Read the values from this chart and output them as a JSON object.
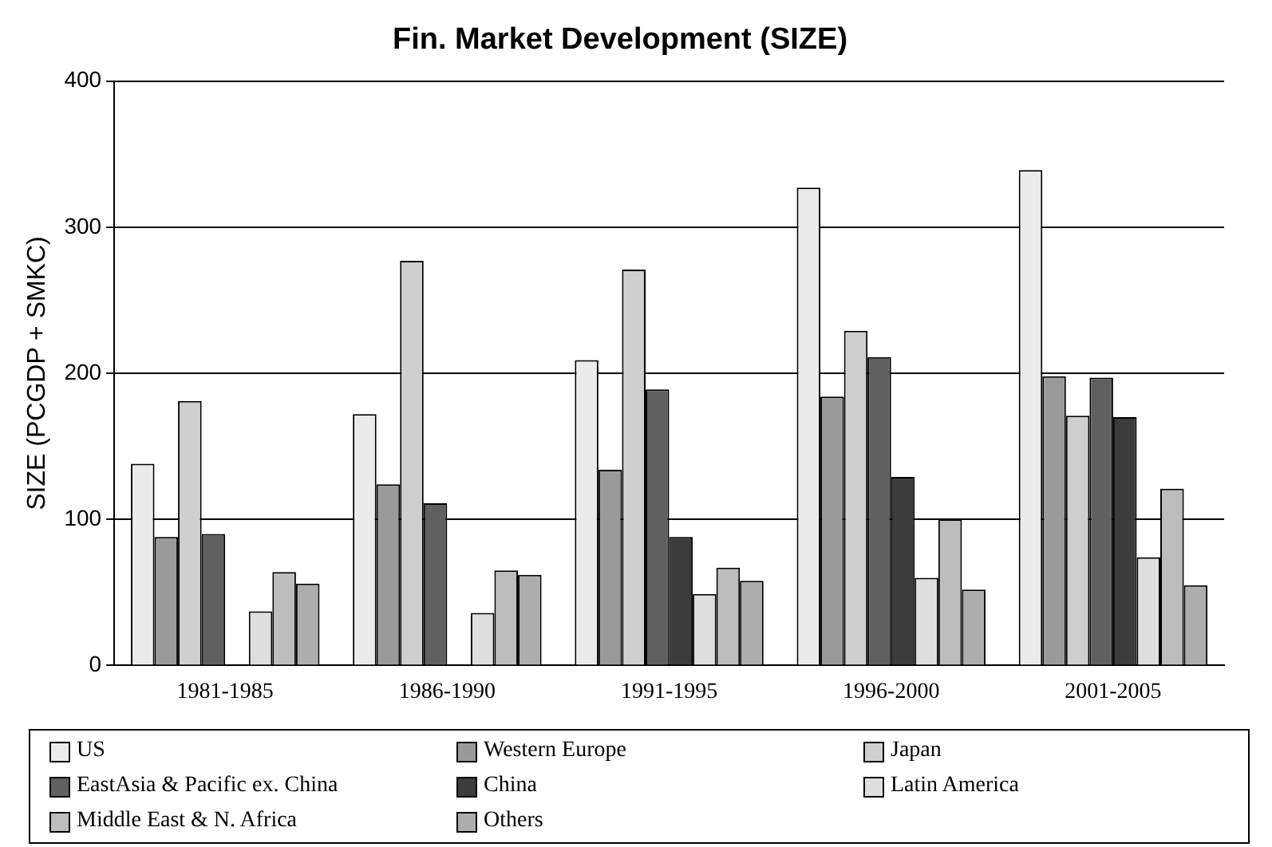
{
  "chart_data": {
    "type": "bar",
    "title": "Fin. Market Development (SIZE)",
    "ylabel": "SIZE (PCGDP + SMKC)",
    "categories": [
      "1981-1985",
      "1986-1990",
      "1991-1995",
      "1996-2000",
      "2001-2005"
    ],
    "series": [
      {
        "name": "US",
        "color": "#ebebeb",
        "values": [
          138,
          172,
          209,
          327,
          339
        ]
      },
      {
        "name": "Western Europe",
        "color": "#9a9a9a",
        "values": [
          88,
          124,
          134,
          184,
          198
        ]
      },
      {
        "name": "Japan",
        "color": "#cfcfcf",
        "values": [
          181,
          277,
          271,
          229,
          171
        ]
      },
      {
        "name": "EastAsia & Pacific ex. China",
        "color": "#606060",
        "values": [
          90,
          111,
          189,
          211,
          197
        ]
      },
      {
        "name": "China",
        "color": "#3c3c3c",
        "values": [
          null,
          null,
          88,
          129,
          170
        ]
      },
      {
        "name": "Latin America",
        "color": "#dedede",
        "values": [
          37,
          36,
          49,
          60,
          74
        ]
      },
      {
        "name": "Middle East & N. Africa",
        "color": "#bdbdbd",
        "values": [
          64,
          65,
          67,
          100,
          121
        ]
      },
      {
        "name": "Others",
        "color": "#adadad",
        "values": [
          56,
          62,
          58,
          52,
          55
        ]
      }
    ],
    "ylim": [
      0,
      400
    ],
    "yticks": [
      0,
      100,
      200,
      300,
      400
    ],
    "grid": "y",
    "legend": "bottom"
  }
}
